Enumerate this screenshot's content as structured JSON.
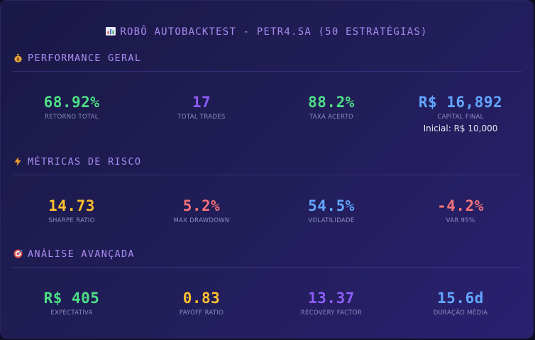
{
  "title": "ROBÔ AUTOBACKTEST - PETR4.SA (50 ESTRATÉGIAS)",
  "sections": [
    {
      "icon": "money-bag-icon",
      "title": "PERFORMANCE GERAL",
      "metrics": [
        {
          "value": "68.92%",
          "label": "RETORNO TOTAL",
          "color": "#4ddf86"
        },
        {
          "value": "17",
          "label": "TOTAL TRADES",
          "color": "#8c5cf5"
        },
        {
          "value": "88.2%",
          "label": "TAXA ACERTO",
          "color": "#4ddf86"
        },
        {
          "value": "R$ 16,892",
          "label": "CAPITAL FINAL",
          "sub": "Inicial: R$ 10,000",
          "color": "#62a6ff"
        }
      ]
    },
    {
      "icon": "lightning-icon",
      "title": "MÉTRICAS DE RISCO",
      "metrics": [
        {
          "value": "14.73",
          "label": "SHARPE RATIO",
          "color": "#fdbf2d"
        },
        {
          "value": "5.2%",
          "label": "MAX DRAWDOWN",
          "color": "#f5737a"
        },
        {
          "value": "54.5%",
          "label": "VOLATILIDADE",
          "color": "#62a6ff"
        },
        {
          "value": "-4.2%",
          "label": "VAR 95%",
          "color": "#f5737a"
        }
      ]
    },
    {
      "icon": "target-icon",
      "title": "ANÁLISE AVANÇADA",
      "metrics": [
        {
          "value": "R$ 405",
          "label": "EXPECTATIVA",
          "color": "#4ddf86"
        },
        {
          "value": "0.83",
          "label": "PAYOFF RATIO",
          "color": "#fdbf2d"
        },
        {
          "value": "13.37",
          "label": "RECOVERY FACTOR",
          "color": "#8c5cf5"
        },
        {
          "value": "15.6d",
          "label": "DURAÇÃO MÉDIA",
          "color": "#62a6ff"
        }
      ]
    }
  ]
}
